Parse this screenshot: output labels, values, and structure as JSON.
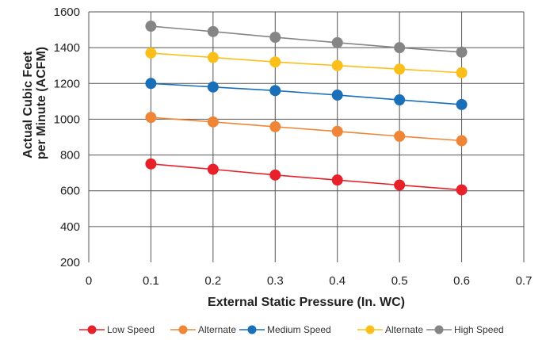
{
  "chart_data": {
    "type": "line",
    "title": "",
    "xlabel": "External Static Pressure (In. WC)",
    "ylabel_lines": [
      "Actual Cubic Feet",
      "per Minute (ACFM)"
    ],
    "xlim": [
      0,
      0.7
    ],
    "ylim": [
      200,
      1600
    ],
    "x_ticks": [
      "0",
      "0.1",
      "0.2",
      "0.3",
      "0.4",
      "0.5",
      "0.6",
      "0.7"
    ],
    "y_ticks": [
      "200",
      "400",
      "600",
      "800",
      "1000",
      "1200",
      "1400",
      "1600"
    ],
    "grid": true,
    "legend_position": "bottom",
    "series": [
      {
        "name": "Low Speed",
        "color": "#e8202a",
        "x": [
          0.1,
          0.2,
          0.3,
          0.4,
          0.5,
          0.6
        ],
        "values": [
          750,
          720,
          688,
          660,
          632,
          605
        ]
      },
      {
        "name": "Alternate",
        "color": "#ef8637",
        "x": [
          0.1,
          0.2,
          0.3,
          0.4,
          0.5,
          0.6
        ],
        "values": [
          1010,
          985,
          958,
          932,
          905,
          880
        ]
      },
      {
        "name": "Medium Speed",
        "color": "#1a6fb9",
        "x": [
          0.1,
          0.2,
          0.3,
          0.4,
          0.5,
          0.6
        ],
        "values": [
          1200,
          1180,
          1160,
          1135,
          1108,
          1082
        ]
      },
      {
        "name": "Alternate",
        "color": "#fbbf1b",
        "x": [
          0.1,
          0.2,
          0.3,
          0.4,
          0.5,
          0.6
        ],
        "values": [
          1370,
          1345,
          1320,
          1300,
          1280,
          1260
        ]
      },
      {
        "name": "High Speed",
        "color": "#858585",
        "x": [
          0.1,
          0.2,
          0.3,
          0.4,
          0.5,
          0.6
        ],
        "values": [
          1520,
          1490,
          1458,
          1428,
          1400,
          1375
        ]
      }
    ]
  }
}
